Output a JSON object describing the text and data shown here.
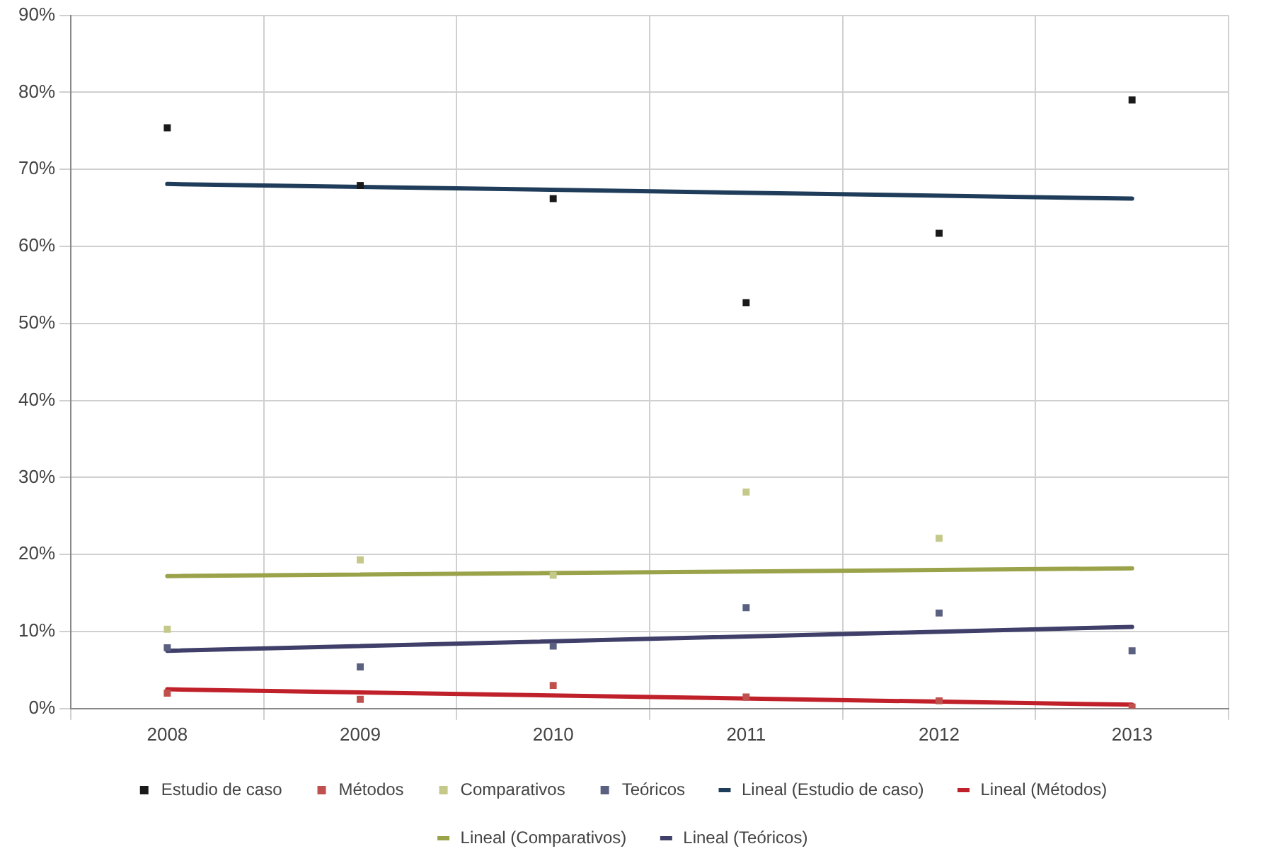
{
  "chart_data": {
    "type": "scatter",
    "categories": [
      "2008",
      "2009",
      "2010",
      "2011",
      "2012",
      "2013"
    ],
    "series": [
      {
        "name": "Estudio de caso",
        "marker": "square",
        "color": "#1a1a1a",
        "values": [
          75.4,
          67.9,
          66.2,
          52.7,
          61.7,
          79.0
        ]
      },
      {
        "name": "Métodos",
        "marker": "square",
        "color": "#c0504d",
        "values": [
          2,
          1.2,
          3,
          1.5,
          1,
          0.2
        ]
      },
      {
        "name": "Comparativos",
        "marker": "square",
        "color": "#c4c98a",
        "values": [
          10.3,
          19.3,
          17.3,
          28.1,
          22.1,
          null
        ]
      },
      {
        "name": "Teóricos",
        "marker": "square",
        "color": "#5a6080",
        "values": [
          7.9,
          5.4,
          8.1,
          13.1,
          12.4,
          7.5
        ]
      },
      {
        "name": "Lineal (Estudio de caso)",
        "type": "line",
        "color": "#1f3d5a",
        "values": [
          68.1,
          null,
          null,
          null,
          null,
          66.2
        ]
      },
      {
        "name": "Lineal (Métodos)",
        "type": "line",
        "color": "#c0202a",
        "values": [
          2.5,
          null,
          null,
          null,
          null,
          0.5
        ]
      },
      {
        "name": "Lineal (Comparativos)",
        "type": "line",
        "color": "#9aa34a",
        "values": [
          17.2,
          null,
          null,
          null,
          null,
          18.2
        ]
      },
      {
        "name": "Lineal (Teóricos)",
        "type": "line",
        "color": "#3f3f6a",
        "values": [
          7.5,
          null,
          null,
          null,
          null,
          10.6
        ]
      }
    ],
    "ylim": [
      0,
      90
    ],
    "yticks": [
      {
        "value": 0,
        "label": "0%"
      },
      {
        "value": 10,
        "label": "10%"
      },
      {
        "value": 20,
        "label": "20%"
      },
      {
        "value": 30,
        "label": "30%"
      },
      {
        "value": 40,
        "label": "40%"
      },
      {
        "value": 50,
        "label": "50%"
      },
      {
        "value": 60,
        "label": "60%"
      },
      {
        "value": 70,
        "label": "70%"
      },
      {
        "value": 80,
        "label": "80%"
      },
      {
        "value": 90,
        "label": "90%"
      }
    ],
    "grid": true,
    "legend": "bottom",
    "line_style": "solid"
  }
}
